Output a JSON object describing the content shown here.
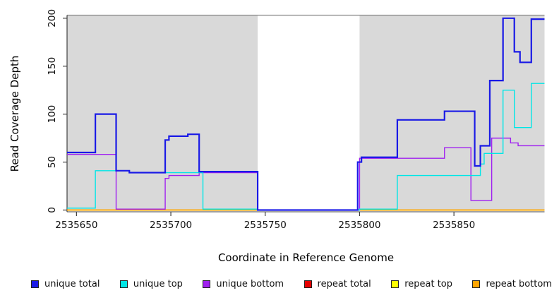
{
  "chart_data": {
    "type": "line",
    "subtype": "step",
    "title": "",
    "xlabel": "Coordinate in Reference Genome",
    "ylabel": "Read Coverage Depth",
    "x_domain": [
      2535645,
      2535898
    ],
    "y_domain": [
      0,
      203
    ],
    "x_ticks": [
      2535650,
      2535700,
      2535750,
      2535800,
      2535850
    ],
    "y_ticks": [
      0,
      50,
      100,
      150,
      200
    ],
    "gap_region": [
      2535746,
      2535800
    ],
    "grid": "off",
    "legend_position": "bottom",
    "colors": {
      "plot_bg": "#D9D9D9",
      "gap_bg": "#FFFFFF",
      "axis": "#404040",
      "plot_top_border": "#8C8C8C",
      "tick_label": "#111111"
    },
    "series": [
      {
        "name": "unique total",
        "color": "#1A1AE6",
        "line_width": 2.2,
        "z": 6,
        "steps": [
          [
            2535645,
            60
          ],
          [
            2535660,
            100
          ],
          [
            2535671,
            41
          ],
          [
            2535678,
            39
          ],
          [
            2535697,
            73
          ],
          [
            2535699,
            77
          ],
          [
            2535709,
            79
          ],
          [
            2535715,
            40
          ],
          [
            2535746,
            0
          ],
          [
            2535799,
            50
          ],
          [
            2535801,
            55
          ],
          [
            2535820,
            94
          ],
          [
            2535845,
            103
          ],
          [
            2535861,
            46
          ],
          [
            2535864,
            67
          ],
          [
            2535869,
            135
          ],
          [
            2535876,
            200
          ],
          [
            2535882,
            165
          ],
          [
            2535885,
            154
          ],
          [
            2535891,
            199
          ]
        ]
      },
      {
        "name": "unique top",
        "color": "#00E6E6",
        "line_width": 1.4,
        "z": 5,
        "steps": [
          [
            2535645,
            2
          ],
          [
            2535660,
            41
          ],
          [
            2535678,
            39
          ],
          [
            2535717,
            1
          ],
          [
            2535746,
            0
          ],
          [
            2535800,
            1
          ],
          [
            2535820,
            36
          ],
          [
            2535864,
            48
          ],
          [
            2535866,
            59
          ],
          [
            2535876,
            125
          ],
          [
            2535882,
            86
          ],
          [
            2535891,
            132
          ]
        ]
      },
      {
        "name": "unique bottom",
        "color": "#A020F0",
        "line_width": 1.4,
        "z": 4,
        "steps": [
          [
            2535645,
            58
          ],
          [
            2535671,
            1
          ],
          [
            2535697,
            33
          ],
          [
            2535699,
            36
          ],
          [
            2535715,
            39
          ],
          [
            2535746,
            0
          ],
          [
            2535800,
            54
          ],
          [
            2535845,
            65
          ],
          [
            2535859,
            10
          ],
          [
            2535870,
            75
          ],
          [
            2535880,
            70
          ],
          [
            2535884,
            67
          ]
        ]
      },
      {
        "name": "repeat total",
        "color": "#E60000",
        "line_width": 1.4,
        "z": 1,
        "steps": [
          [
            2535645,
            0
          ]
        ]
      },
      {
        "name": "repeat top",
        "color": "#FFFF00",
        "line_width": 1.4,
        "z": 2,
        "steps": [
          [
            2535645,
            0
          ]
        ]
      },
      {
        "name": "repeat bottom",
        "color": "#FFA500",
        "line_width": 1.8,
        "z": 3,
        "steps": [
          [
            2535645,
            0
          ]
        ]
      }
    ]
  }
}
